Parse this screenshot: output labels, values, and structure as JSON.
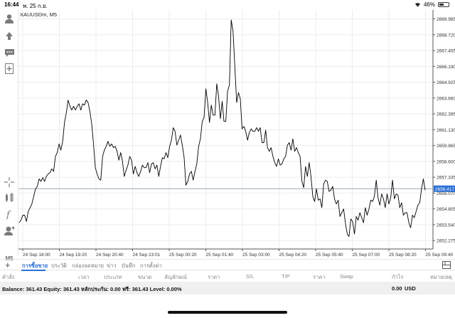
{
  "status_bar": {
    "time": "16:44",
    "date": "พ. 25 ก.ย.",
    "battery": "46%",
    "battery_level": 0.46
  },
  "toolbar": {
    "tools": [
      "account-icon",
      "trade-arrows-icon",
      "chat-icon",
      "add-object-icon",
      "crosshair-icon",
      "indicators-icon",
      "function-icon",
      "objects-icon"
    ],
    "timeframe_label": "M5"
  },
  "chart_data": {
    "type": "line",
    "title": "XAUUSDm, M5",
    "price_ticks": [
      "2669.985",
      "2668.720",
      "2667.455",
      "2666.190",
      "2664.925",
      "2663.660",
      "2662.395",
      "2661.130",
      "2659.865",
      "2658.600",
      "2657.335",
      "2656.070",
      "2654.805",
      "2653.540",
      "2652.275"
    ],
    "current_price": "2656.417",
    "time_ticks": [
      "24 Sep 18:00",
      "24 Sep 19:20",
      "24 Sep 20:40",
      "24 Sep 23:01",
      "25 Sep 00:20",
      "25 Sep 01:40",
      "25 Sep 03:00",
      "25 Sep 04:20",
      "25 Sep 05:40",
      "25 Sep 07:00",
      "25 Sep 08:20",
      "25 Sep 09:40"
    ],
    "ylim": [
      2651.6,
      2670.7
    ],
    "grid": true,
    "values": [
      2653.7,
      2653.9,
      2654.3,
      2654.3,
      2653.8,
      2654.6,
      2654.9,
      2655.2,
      2655.8,
      2656.4,
      2656.6,
      2657.2,
      2657.0,
      2657.3,
      2657.0,
      2657.4,
      2657.6,
      2657.7,
      2658.0,
      2657.8,
      2659.0,
      2659.3,
      2660.0,
      2659.5,
      2660.2,
      2661.7,
      2662.5,
      2663.5,
      2663.0,
      2662.7,
      2663.0,
      2662.7,
      2663.0,
      2663.2,
      2662.7,
      2663.2,
      2663.1,
      2663.5,
      2663.3,
      2662.6,
      2661.6,
      2660.0,
      2658.1,
      2657.6,
      2657.2,
      2657.1,
      2659.0,
      2659.5,
      2659.8,
      2660.2,
      2659.8,
      2660.0,
      2659.7,
      2659.8,
      2659.4,
      2658.7,
      2659.3,
      2658.6,
      2657.4,
      2657.9,
      2658.3,
      2659.0,
      2658.7,
      2657.6,
      2658.2,
      2657.7,
      2657.4,
      2657.8,
      2658.3,
      2658.1,
      2658.1,
      2658.5,
      2657.7,
      2658.4,
      2658.5,
      2658.0,
      2658.3,
      2657.4,
      2658.2,
      2658.9,
      2658.8,
      2659.3,
      2658.9,
      2659.8,
      2660.3,
      2661.3,
      2661.0,
      2659.9,
      2660.3,
      2660.7,
      2659.9,
      2658.9,
      2656.7,
      2657.0,
      2657.6,
      2657.8,
      2657.1,
      2657.8,
      2658.4,
      2659.8,
      2660.4,
      2661.8,
      2662.1,
      2664.4,
      2663.3,
      2661.7,
      2663.1,
      2662.3,
      2662.3,
      2664.8,
      2663.8,
      2662.0,
      2663.4,
      2661.8,
      2661.8,
      2664.2,
      2664.7,
      2669.9,
      2669.0,
      2666.2,
      2663.3,
      2664.1,
      2663.6,
      2661.2,
      2661.4,
      2661.0,
      2660.3,
      2660.9,
      2661.2,
      2661.0,
      2661.0,
      2661.3,
      2661.0,
      2661.3,
      2660.1,
      2660.1,
      2661.1,
      2659.7,
      2659.4,
      2659.7,
      2659.0,
      2658.5,
      2658.2,
      2658.8,
      2658.3,
      2658.4,
      2658.8,
      2659.0,
      2659.9,
      2660.1,
      2659.5,
      2660.4,
      2659.4,
      2659.7,
      2659.3,
      2659.0,
      2657.0,
      2656.5,
      2658.2,
      2657.4,
      2658.5,
      2657.4,
      2655.8,
      2655.4,
      2656.4,
      2655.5,
      2655.6,
      2654.9,
      2656.8,
      2657.1,
      2657.0,
      2656.2,
      2656.3,
      2656.6,
      2655.6,
      2655.2,
      2655.5,
      2654.2,
      2654.5,
      2654.8,
      2653.7,
      2652.8,
      2652.6,
      2654.0,
      2653.8,
      2652.8,
      2654.2,
      2653.9,
      2654.5,
      2654.1,
      2653.7,
      2654.9,
      2654.3,
      2654.8,
      2655.5,
      2655.4,
      2655.8,
      2657.1,
      2655.7,
      2655.1,
      2656.0,
      2655.6,
      2654.9,
      2656.0,
      2655.2,
      2655.7,
      2657.1,
      2655.6,
      2656.0,
      2655.9,
      2654.9,
      2655.3,
      2654.3,
      2654.5,
      2654.5,
      2653.7,
      2653.3,
      2654.3,
      2654.1,
      2654.6,
      2655.1,
      2655.3,
      2656.4,
      2657.2,
      2656.3
    ]
  },
  "tabs": {
    "items": [
      "การซื้อขาย",
      "ประวัติ",
      "กล่องจดหมาย",
      "ข่าว",
      "บันทึก",
      "การตั้งค่า"
    ]
  },
  "columns": [
    "คำสั่ง",
    "เวลา",
    "ประเภท",
    "ขนาด",
    "สัญลักษณ์",
    "ราคา",
    "S/L",
    "T/P",
    "ราคา",
    "Swap",
    "กำไร",
    "หมายเหตุ"
  ],
  "balance": {
    "text": "Balance: 361.43 Equity: 361.43 หลักประกัน: 0.00 ฟรี: 361.43 Level: 0.00%",
    "profit": "0.00",
    "currency": "USD"
  },
  "colors": {
    "accent": "#2a6fd6",
    "price_line": "#9aa7b5",
    "series": "#000000",
    "grid": "#ececec"
  }
}
